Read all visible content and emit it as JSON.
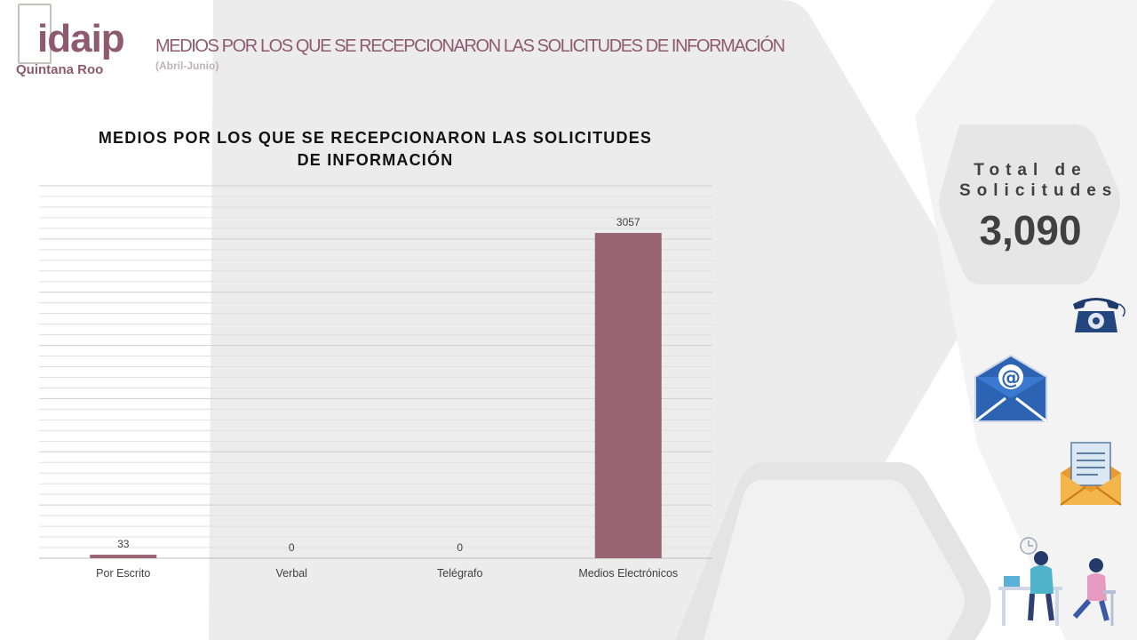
{
  "header": {
    "logo_text": "idaip",
    "logo_subtext": "Quintana Roo",
    "title": "MEDIOS POR LOS QUE SE RECEPCIONARON LAS SOLICITUDES DE INFORMACIÓN",
    "subtitle": "(Abril-Junio)"
  },
  "chart_data": {
    "type": "bar",
    "title_line1": "MEDIOS  POR  LOS  QUE  SE  RECEPCIONARON  LAS SOLICITUDES",
    "title_line2": "DE  INFORMACIÓN",
    "categories": [
      "Por Escrito",
      "Verbal",
      "Telégrafo",
      "Medios Electrónicos"
    ],
    "values": [
      33,
      0,
      0,
      3057
    ],
    "ylim": [
      0,
      3500
    ],
    "grid": true,
    "bar_color": "#986474"
  },
  "summary": {
    "label_line1": "Total de",
    "label_line2": "Solicitudes",
    "value": "3,090"
  },
  "icons": [
    "telephone-icon",
    "email-icon",
    "letter-envelope-icon",
    "people-conversation-icon"
  ],
  "colors": {
    "accent": "#8e5a6d",
    "bar": "#986474",
    "background_shape": "#ececec"
  }
}
